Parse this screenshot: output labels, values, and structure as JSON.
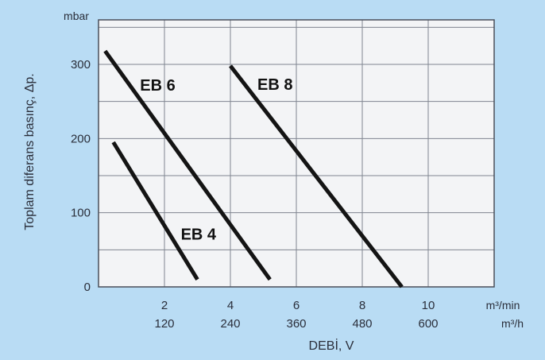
{
  "chart_data": {
    "type": "line",
    "title": "",
    "xlabel": "DEBİ, V",
    "ylabel": "Toplam diferans basınç,  Δp.",
    "y_unit": "mbar",
    "x_units": [
      "m³/min",
      "m³/h"
    ],
    "xlim": [
      0,
      12
    ],
    "ylim": [
      0,
      360
    ],
    "x_ticks": [
      {
        "x": 2,
        "label_min": "2",
        "label_h": "120"
      },
      {
        "x": 4,
        "label_min": "4",
        "label_h": "240"
      },
      {
        "x": 6,
        "label_min": "6",
        "label_h": "360"
      },
      {
        "x": 8,
        "label_min": "8",
        "label_h": "480"
      },
      {
        "x": 10,
        "label_min": "10",
        "label_h": "600"
      }
    ],
    "y_ticks": [
      "0",
      "100",
      "200",
      "300"
    ],
    "grid": true,
    "colors": {
      "background": "#b9dcf4",
      "plot_area": "#f3f4f6",
      "grid": "#7f8590",
      "line": "#141414"
    },
    "series": [
      {
        "name": "EB 4",
        "x": [
          0.45,
          3.0
        ],
        "y": [
          195,
          10
        ]
      },
      {
        "name": "EB 6",
        "x": [
          0.2,
          5.2
        ],
        "y": [
          318,
          10
        ]
      },
      {
        "name": "EB 8",
        "x": [
          4.0,
          9.2
        ],
        "y": [
          298,
          0
        ]
      }
    ]
  }
}
